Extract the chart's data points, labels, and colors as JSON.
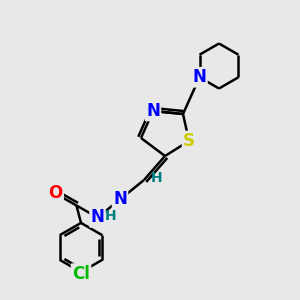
{
  "background_color": "#e8e8e8",
  "bond_color": "#000000",
  "N_color": "#0000ff",
  "O_color": "#ff0000",
  "S_color": "#cccc00",
  "Cl_color": "#00bb00",
  "H_color": "#008080",
  "figsize": [
    3.0,
    3.0
  ],
  "dpi": 100,
  "xlim": [
    0,
    10
  ],
  "ylim": [
    0,
    10
  ],
  "lw": 1.8,
  "fs": 12
}
